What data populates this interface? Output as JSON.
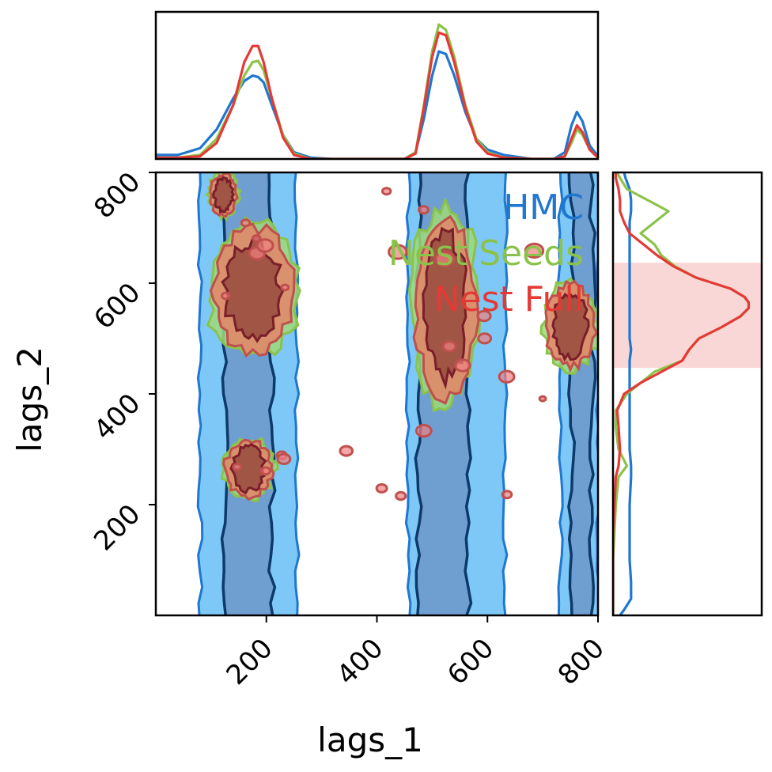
{
  "chart_data": {
    "type": "corner-plot",
    "xlabel": "lags_1",
    "ylabel": "lags_2",
    "xlim": [
      0,
      800
    ],
    "ylim": [
      0,
      800
    ],
    "xticks": [
      200,
      400,
      600,
      800
    ],
    "yticks": [
      200,
      400,
      600,
      800
    ],
    "x_tick_labels": [
      "200",
      "400",
      "600",
      "800"
    ],
    "y_tick_labels": [
      "200",
      "400",
      "600",
      "800"
    ],
    "legend_position": "top-right",
    "series": [
      {
        "name": "HMC",
        "color": "#1f77d0"
      },
      {
        "name": "Nest Seeds",
        "color": "#8bc34a"
      },
      {
        "name": "Nest Full",
        "color": "#e53935"
      }
    ],
    "marginal_x": {
      "x": [
        0,
        40,
        80,
        110,
        140,
        160,
        175,
        185,
        195,
        210,
        230,
        250,
        280,
        320,
        380,
        420,
        450,
        470,
        485,
        500,
        512,
        525,
        540,
        560,
        580,
        600,
        630,
        680,
        720,
        740,
        752,
        762,
        772,
        785,
        800
      ],
      "densities": [
        [
          0.03,
          0.03,
          0.08,
          0.22,
          0.45,
          0.58,
          0.62,
          0.61,
          0.57,
          0.4,
          0.18,
          0.05,
          0.01,
          0.0,
          0.0,
          0.0,
          0.0,
          0.05,
          0.3,
          0.62,
          0.8,
          0.78,
          0.62,
          0.35,
          0.15,
          0.07,
          0.03,
          0.0,
          0.0,
          0.05,
          0.25,
          0.35,
          0.28,
          0.1,
          0.02
        ],
        [
          0.01,
          0.01,
          0.03,
          0.15,
          0.4,
          0.62,
          0.72,
          0.73,
          0.66,
          0.45,
          0.18,
          0.04,
          0.0,
          0.0,
          0.0,
          0.0,
          0.0,
          0.05,
          0.4,
          0.8,
          1.0,
          0.96,
          0.76,
          0.4,
          0.15,
          0.05,
          0.01,
          0.0,
          0.0,
          0.02,
          0.12,
          0.22,
          0.18,
          0.07,
          0.01
        ],
        [
          0.01,
          0.01,
          0.02,
          0.12,
          0.4,
          0.72,
          0.84,
          0.84,
          0.72,
          0.45,
          0.16,
          0.03,
          0.0,
          0.0,
          0.0,
          0.0,
          0.0,
          0.04,
          0.38,
          0.76,
          0.94,
          0.92,
          0.72,
          0.38,
          0.13,
          0.04,
          0.01,
          0.0,
          0.0,
          0.02,
          0.15,
          0.25,
          0.2,
          0.07,
          0.01
        ]
      ]
    },
    "marginal_y": {
      "y": [
        0,
        10,
        30,
        60,
        100,
        150,
        200,
        250,
        270,
        300,
        340,
        370,
        400,
        420,
        440,
        460,
        480,
        500,
        520,
        540,
        555,
        565,
        575,
        590,
        610,
        630,
        650,
        670,
        690,
        710,
        730,
        750,
        770,
        790,
        800
      ],
      "densities": [
        [
          0.05,
          0.08,
          0.13,
          0.13,
          0.12,
          0.12,
          0.12,
          0.13,
          0.13,
          0.12,
          0.12,
          0.12,
          0.12,
          0.12,
          0.12,
          0.12,
          0.13,
          0.12,
          0.12,
          0.12,
          0.12,
          0.12,
          0.12,
          0.12,
          0.12,
          0.12,
          0.12,
          0.12,
          0.12,
          0.12,
          0.13,
          0.13,
          0.12,
          0.09,
          0.08
        ],
        [
          0.0,
          0.0,
          0.0,
          0.0,
          0.0,
          0.01,
          0.02,
          0.04,
          0.1,
          0.04,
          0.02,
          0.02,
          0.1,
          0.2,
          0.3,
          0.5,
          0.55,
          0.62,
          0.78,
          0.92,
          0.98,
          0.98,
          0.95,
          0.85,
          0.6,
          0.45,
          0.35,
          0.3,
          0.2,
          0.3,
          0.4,
          0.25,
          0.1,
          0.05,
          0.03
        ],
        [
          0.0,
          0.0,
          0.0,
          0.0,
          0.0,
          0.0,
          0.01,
          0.02,
          0.04,
          0.05,
          0.04,
          0.03,
          0.08,
          0.2,
          0.35,
          0.5,
          0.55,
          0.62,
          0.78,
          0.92,
          0.98,
          0.98,
          0.95,
          0.85,
          0.6,
          0.44,
          0.32,
          0.22,
          0.12,
          0.08,
          0.05,
          0.05,
          0.04,
          0.02,
          0.02
        ]
      ],
      "shaded_interval": [
        447,
        637
      ]
    },
    "joint_bands_x": [
      {
        "series": "HMC",
        "level": "outer",
        "x": [
          80,
          255
        ]
      },
      {
        "series": "HMC",
        "level": "inner",
        "x": [
          125,
          210
        ]
      },
      {
        "series": "HMC",
        "level": "outer",
        "x": [
          457,
          632
        ]
      },
      {
        "series": "HMC",
        "level": "inner",
        "x": [
          475,
          565
        ]
      },
      {
        "series": "HMC",
        "level": "outer",
        "x": [
          732,
          800
        ]
      },
      {
        "series": "HMC",
        "level": "inner",
        "x": [
          752,
          790
        ]
      }
    ],
    "joint_blobs": [
      {
        "x": [
          93,
          258
        ],
        "y": [
          463,
          710
        ]
      },
      {
        "x": [
          462,
          586
        ],
        "y": [
          380,
          737
        ]
      },
      {
        "x": [
          700,
          800
        ],
        "y": [
          443,
          603
        ]
      },
      {
        "x": [
          120,
          215
        ],
        "y": [
          210,
          320
        ]
      },
      {
        "x": [
          95,
          150
        ],
        "y": [
          720,
          800
        ]
      }
    ]
  }
}
